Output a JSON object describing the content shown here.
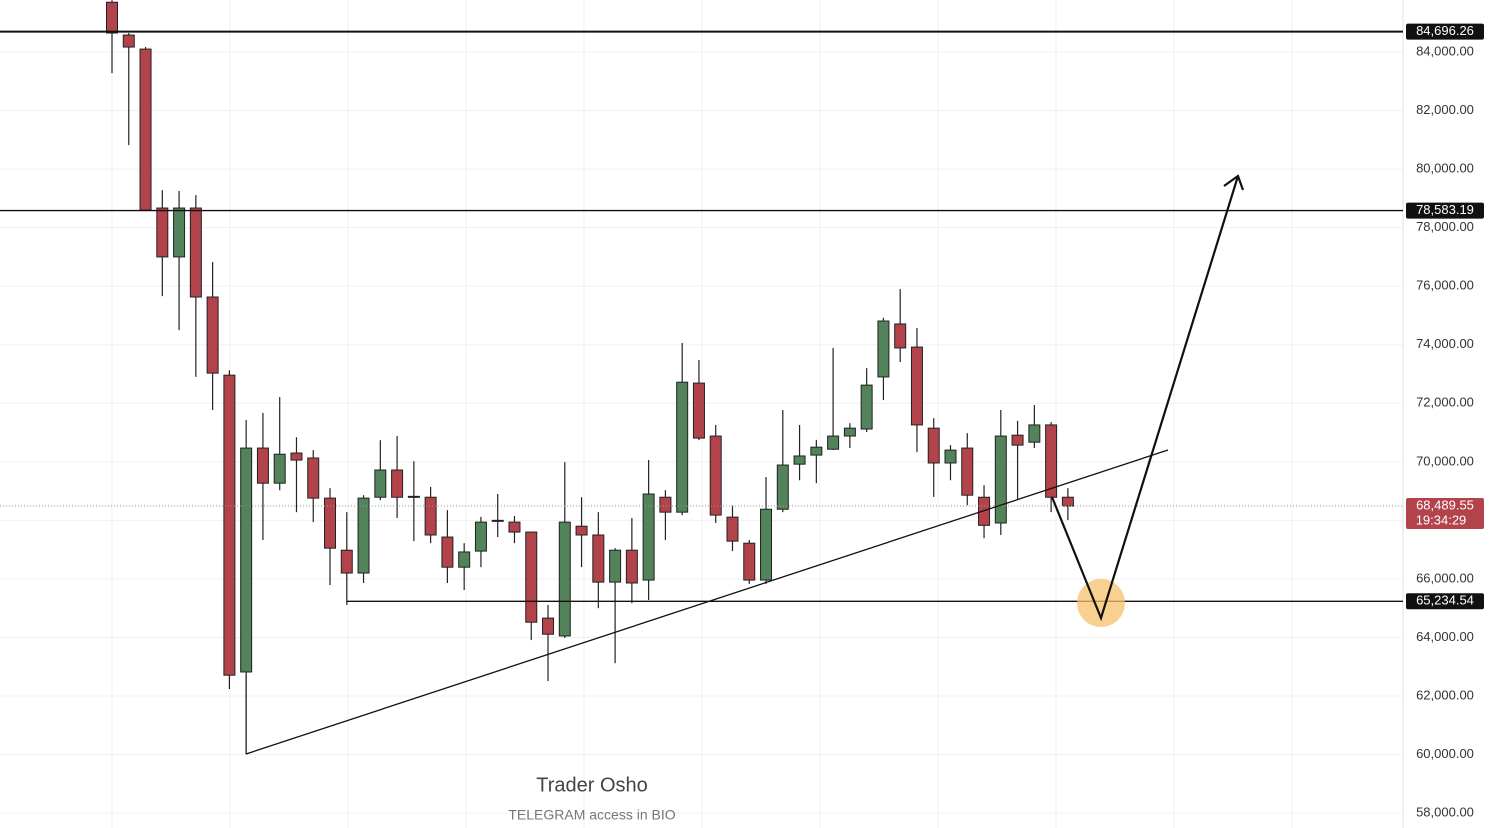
{
  "chart_data": {
    "type": "candlestick",
    "up_color": "#52835a",
    "down_color": "#b3434b",
    "grid": true,
    "ylim": [
      57490,
      85777
    ],
    "yticks": [
      {
        "value": 58000,
        "label": "58,000.00"
      },
      {
        "value": 60000,
        "label": "60,000.00"
      },
      {
        "value": 62000,
        "label": "62,000.00"
      },
      {
        "value": 64000,
        "label": "64,000.00"
      },
      {
        "value": 66000,
        "label": "66,000.00"
      },
      {
        "value": 68000,
        "label": "68,000.00"
      },
      {
        "value": 70000,
        "label": "70,000.00"
      },
      {
        "value": 72000,
        "label": "72,000.00"
      },
      {
        "value": 74000,
        "label": "74,000.00"
      },
      {
        "value": 76000,
        "label": "76,000.00"
      },
      {
        "value": 78000,
        "label": "78,000.00"
      },
      {
        "value": 80000,
        "label": "80,000.00"
      },
      {
        "value": 82000,
        "label": "82,000.00"
      },
      {
        "value": 84000,
        "label": "84,000.00"
      }
    ],
    "open": [
      85700,
      84580,
      84100,
      78670,
      77000,
      78670,
      75630,
      72960,
      62820,
      70470,
      69270,
      70300,
      70130,
      68760,
      66980,
      66200,
      68790,
      69720,
      68820,
      68790,
      67430,
      66400,
      66950,
      67970,
      67940,
      67600,
      64660,
      64050,
      67800,
      67500,
      65890,
      66980,
      65960,
      68790,
      68280,
      72690,
      70880,
      68110,
      67220,
      65960,
      68380,
      69920,
      70230,
      70430,
      70880,
      71120,
      72900,
      74710,
      73920,
      71150,
      69960,
      70470,
      68790,
      67910,
      70910,
      70670,
      71260,
      68790
    ],
    "high": [
      85770,
      84650,
      84170,
      79280,
      79250,
      79110,
      76820,
      73130,
      71430,
      71670,
      72210,
      70840,
      70400,
      69100,
      68280,
      68860,
      70740,
      70880,
      70020,
      69140,
      68350,
      67220,
      68120,
      68900,
      68150,
      67600,
      65110,
      69990,
      68790,
      68280,
      67050,
      68080,
      70060,
      69030,
      74060,
      73480,
      71260,
      68520,
      67330,
      69480,
      71770,
      71260,
      70750,
      73890,
      71320,
      73200,
      74920,
      75900,
      74570,
      71490,
      70570,
      70980,
      69200,
      71770,
      71400,
      71940,
      71360,
      69100
    ],
    "low": [
      83280,
      80820,
      78600,
      75660,
      74500,
      72900,
      71770,
      62240,
      60010,
      67330,
      69030,
      68280,
      67940,
      65790,
      65110,
      65860,
      68690,
      68080,
      67290,
      67220,
      65860,
      65620,
      66400,
      67430,
      67220,
      63910,
      62510,
      63980,
      66400,
      65000,
      63120,
      65170,
      65280,
      67330,
      68180,
      70740,
      67910,
      66950,
      65830,
      65830,
      68280,
      69370,
      69270,
      70400,
      70470,
      71020,
      72110,
      73410,
      70330,
      68800,
      69370,
      68520,
      67390,
      67500,
      68690,
      70470,
      68280,
      68010
    ],
    "close": [
      84650,
      84170,
      78600,
      77000,
      78670,
      75630,
      73030,
      62710,
      70470,
      69270,
      70260,
      70060,
      68760,
      67050,
      66200,
      68760,
      69720,
      68790,
      68790,
      67500,
      66400,
      66920,
      67940,
      68000,
      67600,
      64520,
      64110,
      67940,
      67500,
      65890,
      66980,
      65860,
      68900,
      68280,
      72720,
      70810,
      68180,
      67290,
      65960,
      68380,
      69890,
      70200,
      70500,
      70880,
      71150,
      72620,
      74810,
      73890,
      71260,
      69960,
      70400,
      68860,
      67830,
      70880,
      70570,
      71260,
      68790,
      68489.55
    ],
    "levels": [
      {
        "value": 84696.26,
        "label": "84,696.26"
      },
      {
        "value": 78583.19,
        "label": "78,583.19"
      },
      {
        "value": 65234.54,
        "label": "65,234.54"
      }
    ],
    "current_price": {
      "value": 68489.55,
      "label": "68,489.55",
      "countdown": "19:34:29",
      "color": "#b3434b"
    },
    "watermark": {
      "title": "Trader Osho",
      "subtitle": "TELEGRAM access in BIO"
    }
  }
}
